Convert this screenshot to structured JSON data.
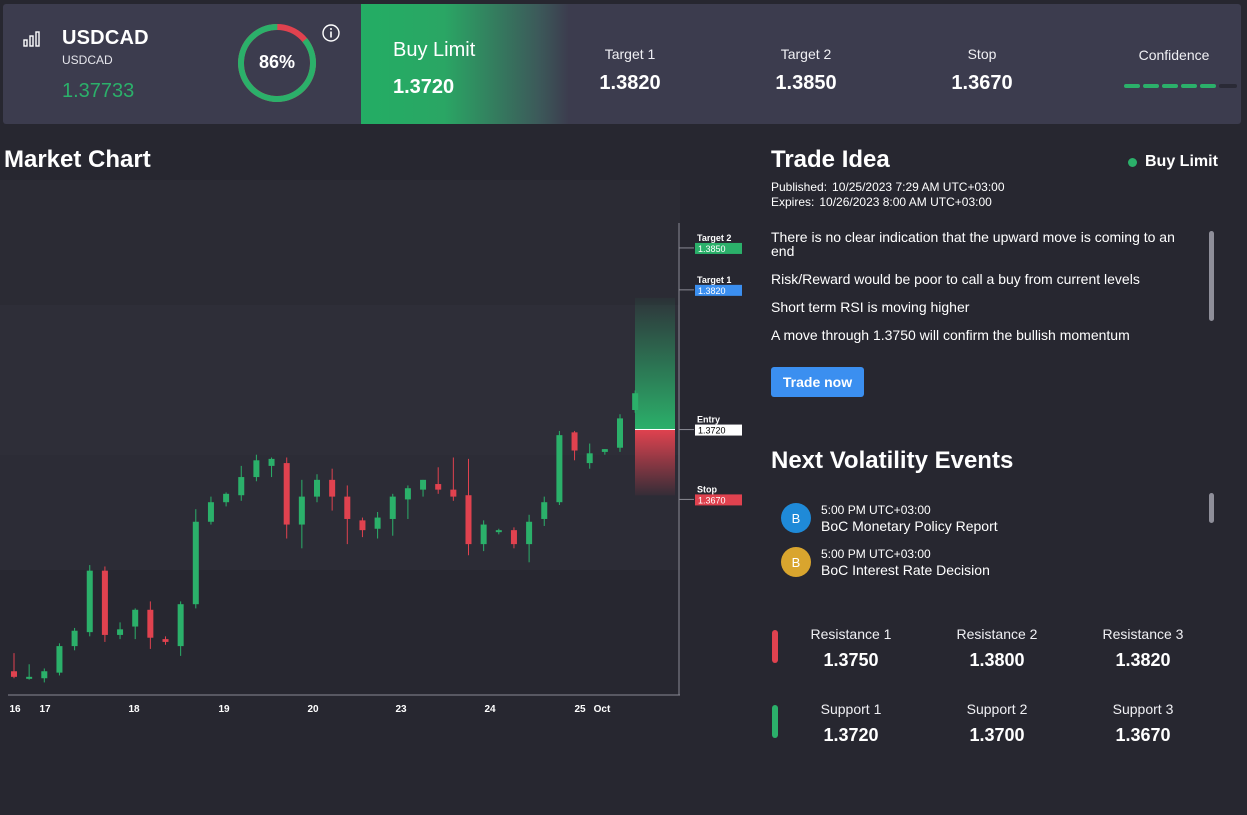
{
  "header": {
    "symbol": "USDCAD",
    "symbol_sub": "USDCAD",
    "price": "1.37733",
    "gauge_percent": 86,
    "gauge_text": "86%",
    "action": "Buy Limit",
    "entry": "1.3720",
    "columns": [
      {
        "label": "Target 1",
        "value": "1.3820"
      },
      {
        "label": "Target 2",
        "value": "1.3850"
      },
      {
        "label": "Stop",
        "value": "1.3670"
      }
    ],
    "confidence_label": "Confidence",
    "confidence_filled": 5,
    "confidence_total": 6
  },
  "chart": {
    "title": "Market Chart",
    "x_labels": [
      "16",
      "17",
      "18",
      "19",
      "20",
      "23",
      "24",
      "25",
      "Oct"
    ],
    "levels": [
      {
        "name": "Target 2",
        "value": "1.3850",
        "color": "#2bb06a"
      },
      {
        "name": "Target 1",
        "value": "1.3820",
        "color": "#3b8ff0"
      },
      {
        "name": "Entry",
        "value": "1.3720",
        "color": "#ffffff"
      },
      {
        "name": "Stop",
        "value": "1.3670",
        "color": "#e0424f"
      }
    ]
  },
  "chart_data": {
    "type": "candlestick",
    "x_ticks": [
      "16",
      "17",
      "18",
      "19",
      "20",
      "23",
      "24",
      "25",
      "Oct"
    ],
    "y_range": [
      1.353,
      1.387
    ],
    "levels": {
      "target_2": 1.385,
      "target_1": 1.382,
      "entry": 1.372,
      "stop": 1.367
    },
    "candles": [
      {
        "o": 1.3547,
        "h": 1.356,
        "l": 1.3542,
        "c": 1.3543
      },
      {
        "o": 1.3543,
        "h": 1.3552,
        "l": 1.3541,
        "c": 1.3543
      },
      {
        "o": 1.3542,
        "h": 1.3549,
        "l": 1.3539,
        "c": 1.3547
      },
      {
        "o": 1.3546,
        "h": 1.3567,
        "l": 1.3544,
        "c": 1.3565
      },
      {
        "o": 1.3565,
        "h": 1.3578,
        "l": 1.3562,
        "c": 1.3576
      },
      {
        "o": 1.3575,
        "h": 1.3623,
        "l": 1.3572,
        "c": 1.3619
      },
      {
        "o": 1.3619,
        "h": 1.3622,
        "l": 1.3568,
        "c": 1.3573
      },
      {
        "o": 1.3573,
        "h": 1.3582,
        "l": 1.357,
        "c": 1.3577
      },
      {
        "o": 1.3579,
        "h": 1.3592,
        "l": 1.357,
        "c": 1.3591
      },
      {
        "o": 1.3591,
        "h": 1.3597,
        "l": 1.3563,
        "c": 1.3571
      },
      {
        "o": 1.357,
        "h": 1.3572,
        "l": 1.3566,
        "c": 1.3568
      },
      {
        "o": 1.3565,
        "h": 1.3597,
        "l": 1.3558,
        "c": 1.3595
      },
      {
        "o": 1.3595,
        "h": 1.3663,
        "l": 1.3592,
        "c": 1.3654
      },
      {
        "o": 1.3654,
        "h": 1.3672,
        "l": 1.3652,
        "c": 1.3668
      },
      {
        "o": 1.3668,
        "h": 1.3675,
        "l": 1.3665,
        "c": 1.3674
      },
      {
        "o": 1.3673,
        "h": 1.3694,
        "l": 1.3669,
        "c": 1.3686
      },
      {
        "o": 1.3686,
        "h": 1.3702,
        "l": 1.3683,
        "c": 1.3698
      },
      {
        "o": 1.3694,
        "h": 1.37,
        "l": 1.3686,
        "c": 1.3699
      },
      {
        "o": 1.3696,
        "h": 1.37,
        "l": 1.3642,
        "c": 1.3652
      },
      {
        "o": 1.3652,
        "h": 1.3684,
        "l": 1.3635,
        "c": 1.3672
      },
      {
        "o": 1.3672,
        "h": 1.3688,
        "l": 1.3668,
        "c": 1.3684
      },
      {
        "o": 1.3684,
        "h": 1.3692,
        "l": 1.3662,
        "c": 1.3672
      },
      {
        "o": 1.3672,
        "h": 1.368,
        "l": 1.3638,
        "c": 1.3656
      },
      {
        "o": 1.3655,
        "h": 1.3657,
        "l": 1.3643,
        "c": 1.3648
      },
      {
        "o": 1.3649,
        "h": 1.3661,
        "l": 1.3642,
        "c": 1.3657
      },
      {
        "o": 1.3656,
        "h": 1.3674,
        "l": 1.3644,
        "c": 1.3672
      },
      {
        "o": 1.367,
        "h": 1.368,
        "l": 1.3656,
        "c": 1.3678
      },
      {
        "o": 1.3677,
        "h": 1.3684,
        "l": 1.3672,
        "c": 1.3684
      },
      {
        "o": 1.3681,
        "h": 1.3693,
        "l": 1.3674,
        "c": 1.3677
      },
      {
        "o": 1.3677,
        "h": 1.37,
        "l": 1.3669,
        "c": 1.3672
      },
      {
        "o": 1.3673,
        "h": 1.3699,
        "l": 1.363,
        "c": 1.3638
      },
      {
        "o": 1.3638,
        "h": 1.3655,
        "l": 1.3633,
        "c": 1.3652
      },
      {
        "o": 1.3647,
        "h": 1.3649,
        "l": 1.3645,
        "c": 1.3648
      },
      {
        "o": 1.3648,
        "h": 1.365,
        "l": 1.3635,
        "c": 1.3638
      },
      {
        "o": 1.3638,
        "h": 1.3659,
        "l": 1.3625,
        "c": 1.3654
      },
      {
        "o": 1.3656,
        "h": 1.3672,
        "l": 1.3651,
        "c": 1.3668
      },
      {
        "o": 1.3668,
        "h": 1.3719,
        "l": 1.3666,
        "c": 1.3716
      },
      {
        "o": 1.3718,
        "h": 1.3719,
        "l": 1.3698,
        "c": 1.3705
      },
      {
        "o": 1.3696,
        "h": 1.371,
        "l": 1.3692,
        "c": 1.3703
      },
      {
        "o": 1.3704,
        "h": 1.3706,
        "l": 1.3702,
        "c": 1.3706
      },
      {
        "o": 1.3707,
        "h": 1.3731,
        "l": 1.3704,
        "c": 1.3728
      },
      {
        "o": 1.3734,
        "h": 1.3748,
        "l": 1.3732,
        "c": 1.3746
      }
    ]
  },
  "idea": {
    "title": "Trade Idea",
    "status": "Buy Limit",
    "published_label": "Published:",
    "published": "10/25/2023 7:29 AM UTC+03:00",
    "expires_label": "Expires:",
    "expires": "10/26/2023 8:00 AM UTC+03:00",
    "bullets": [
      "There is no clear indication that the upward move is coming to an end",
      "Risk/Reward would be poor to call a buy from current levels",
      "Short term RSI is moving higher",
      "A move through 1.3750 will confirm the bullish momentum"
    ],
    "button": "Trade now"
  },
  "volatility": {
    "title": "Next Volatility Events",
    "events": [
      {
        "badge": "B",
        "time": "5:00 PM UTC+03:00",
        "name": "BoC Monetary Policy Report",
        "color": "#1f8ad8"
      },
      {
        "badge": "B",
        "time": "5:00 PM UTC+03:00",
        "name": "BoC Interest Rate Decision",
        "color": "#d9a52e"
      }
    ]
  },
  "levels": {
    "resistance": [
      {
        "label": "Resistance 1",
        "value": "1.3750"
      },
      {
        "label": "Resistance 2",
        "value": "1.3800"
      },
      {
        "label": "Resistance 3",
        "value": "1.3820"
      }
    ],
    "support": [
      {
        "label": "Support 1",
        "value": "1.3720"
      },
      {
        "label": "Support 2",
        "value": "1.3700"
      },
      {
        "label": "Support 3",
        "value": "1.3670"
      }
    ]
  },
  "colors": {
    "up": "#2bb06a",
    "down": "#e0424f",
    "accent": "#3b8ff0"
  }
}
